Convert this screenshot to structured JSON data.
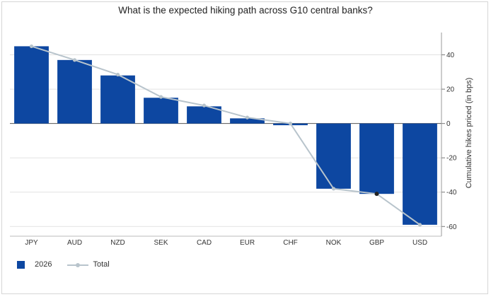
{
  "chart_data": {
    "type": "bar",
    "title": "What is the expected hiking path across G10 central banks?",
    "ylabel": "Cumulative hikes priced (in bps)",
    "xlabel": "",
    "categories": [
      "JPY",
      "AUD",
      "NZD",
      "SEK",
      "CAD",
      "EUR",
      "CHF",
      "NOK",
      "GBP",
      "USD"
    ],
    "series": [
      {
        "name": "2026",
        "kind": "bar",
        "color": "#0d47a1",
        "values": [
          45,
          37,
          28,
          15,
          10,
          3,
          -1,
          -38,
          -41,
          -59
        ]
      },
      {
        "name": "Total",
        "kind": "line",
        "color": "#b8c4cc",
        "values": [
          45,
          37,
          28.5,
          15.5,
          10.5,
          3.5,
          0,
          -38,
          -41,
          -59
        ]
      }
    ],
    "highlight_point": {
      "series": "Total",
      "category": "GBP",
      "color": "#222222"
    },
    "ylim": [
      -64,
      53
    ],
    "yticks": [
      -60,
      -40,
      -20,
      0,
      20,
      40
    ],
    "y_axis_side": "right",
    "grid": true,
    "legend_position": "bottom-left"
  }
}
